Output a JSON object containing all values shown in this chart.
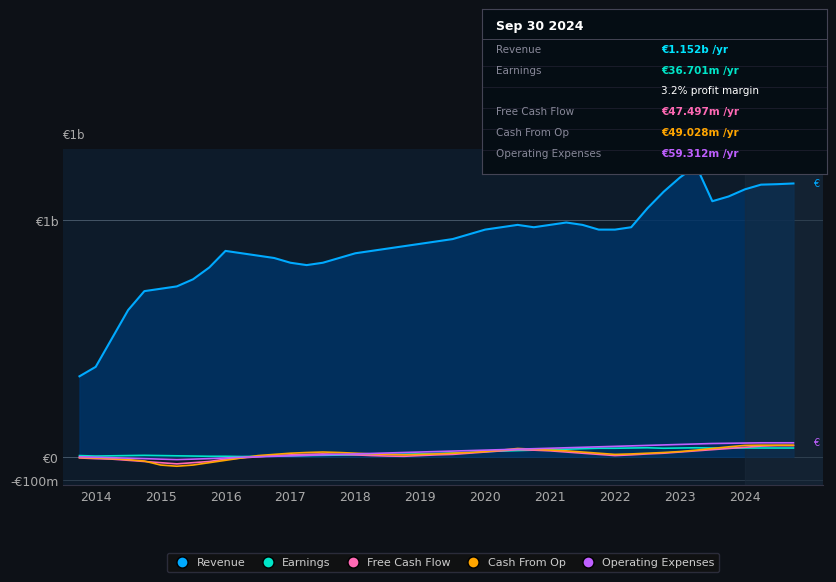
{
  "bg_color": "#0d1117",
  "plot_bg_color": "#0d1b2a",
  "title_box": {
    "date": "Sep 30 2024",
    "rows": [
      {
        "label": "Revenue",
        "value": "€1.152b /yr",
        "value_color": "#00e5ff"
      },
      {
        "label": "Earnings",
        "value": "€36.701m /yr",
        "value_color": "#00e5c8"
      },
      {
        "label": "",
        "value": "3.2% profit margin",
        "value_color": "#ffffff"
      },
      {
        "label": "Free Cash Flow",
        "value": "€47.497m /yr",
        "value_color": "#ff69b4"
      },
      {
        "label": "Cash From Op",
        "value": "€49.028m /yr",
        "value_color": "#ffa500"
      },
      {
        "label": "Operating Expenses",
        "value": "€59.312m /yr",
        "value_color": "#bf5fff"
      }
    ]
  },
  "years_x": [
    2013.75,
    2014,
    2014.25,
    2014.5,
    2014.75,
    2015,
    2015.25,
    2015.5,
    2015.75,
    2016,
    2016.25,
    2016.5,
    2016.75,
    2017,
    2017.25,
    2017.5,
    2017.75,
    2018,
    2018.25,
    2018.5,
    2018.75,
    2019,
    2019.25,
    2019.5,
    2019.75,
    2020,
    2020.25,
    2020.5,
    2020.75,
    2021,
    2021.25,
    2021.5,
    2021.75,
    2022,
    2022.25,
    2022.5,
    2022.75,
    2023,
    2023.25,
    2023.5,
    2023.75,
    2024,
    2024.25,
    2024.5,
    2024.75
  ],
  "revenue": [
    340,
    380,
    500,
    620,
    700,
    710,
    720,
    750,
    800,
    870,
    860,
    850,
    840,
    820,
    810,
    820,
    840,
    860,
    870,
    880,
    890,
    900,
    910,
    920,
    940,
    960,
    970,
    980,
    970,
    980,
    990,
    980,
    960,
    960,
    970,
    1050,
    1120,
    1180,
    1230,
    1080,
    1100,
    1130,
    1150,
    1152,
    1155
  ],
  "earnings": [
    5,
    3,
    4,
    5,
    6,
    5,
    4,
    3,
    2,
    2,
    1,
    2,
    3,
    4,
    5,
    6,
    7,
    8,
    9,
    10,
    11,
    12,
    14,
    16,
    18,
    22,
    24,
    26,
    28,
    30,
    32,
    34,
    36,
    36,
    37,
    38,
    36,
    37,
    38,
    37,
    37,
    37,
    37,
    37,
    37
  ],
  "free_cash_flow": [
    -5,
    -8,
    -10,
    -15,
    -20,
    -25,
    -30,
    -25,
    -20,
    -10,
    -5,
    0,
    5,
    8,
    10,
    12,
    10,
    8,
    5,
    3,
    2,
    5,
    8,
    10,
    15,
    20,
    25,
    30,
    28,
    25,
    20,
    15,
    10,
    5,
    8,
    12,
    15,
    20,
    25,
    30,
    35,
    40,
    45,
    47,
    47
  ],
  "cash_from_op": [
    -3,
    -5,
    -8,
    -12,
    -18,
    -35,
    -40,
    -35,
    -25,
    -15,
    -5,
    5,
    10,
    15,
    18,
    20,
    18,
    15,
    12,
    10,
    8,
    10,
    12,
    15,
    18,
    22,
    28,
    35,
    32,
    28,
    25,
    20,
    15,
    10,
    12,
    15,
    18,
    22,
    28,
    35,
    42,
    48,
    49,
    49,
    49
  ],
  "operating_expenses": [
    0,
    -2,
    -4,
    -6,
    -8,
    -10,
    -12,
    -10,
    -8,
    -5,
    -2,
    0,
    2,
    4,
    6,
    8,
    10,
    12,
    14,
    16,
    18,
    20,
    22,
    24,
    26,
    28,
    30,
    32,
    34,
    36,
    38,
    40,
    42,
    44,
    46,
    48,
    50,
    52,
    54,
    56,
    57,
    58,
    59,
    59,
    59
  ],
  "xlim": [
    2013.5,
    2025.2
  ],
  "ylim": [
    -120,
    1300
  ],
  "y_ticks": [
    -100,
    0,
    1000
  ],
  "y_labels": [
    "-€100m",
    "€0",
    "€1b"
  ],
  "x_ticks": [
    2014,
    2015,
    2016,
    2017,
    2018,
    2019,
    2020,
    2021,
    2022,
    2023,
    2024
  ],
  "legend": [
    {
      "label": "Revenue",
      "color": "#00aaff"
    },
    {
      "label": "Earnings",
      "color": "#00e5c8"
    },
    {
      "label": "Free Cash Flow",
      "color": "#ff69b4"
    },
    {
      "label": "Cash From Op",
      "color": "#ffa500"
    },
    {
      "label": "Operating Expenses",
      "color": "#bf5fff"
    }
  ]
}
